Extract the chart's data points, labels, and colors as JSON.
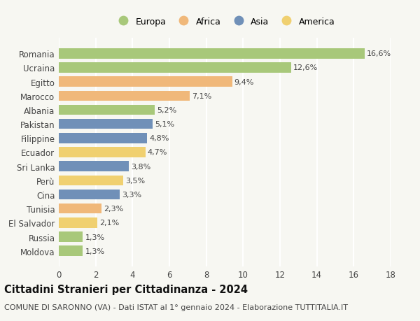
{
  "countries": [
    "Romania",
    "Ucraina",
    "Egitto",
    "Marocco",
    "Albania",
    "Pakistan",
    "Filippine",
    "Ecuador",
    "Sri Lanka",
    "Perù",
    "Cina",
    "Tunisia",
    "El Salvador",
    "Russia",
    "Moldova"
  ],
  "values": [
    16.6,
    12.6,
    9.4,
    7.1,
    5.2,
    5.1,
    4.8,
    4.7,
    3.8,
    3.5,
    3.3,
    2.3,
    2.1,
    1.3,
    1.3
  ],
  "labels": [
    "16,6%",
    "12,6%",
    "9,4%",
    "7,1%",
    "5,2%",
    "5,1%",
    "4,8%",
    "4,7%",
    "3,8%",
    "3,5%",
    "3,3%",
    "2,3%",
    "2,1%",
    "1,3%",
    "1,3%"
  ],
  "continents": [
    "Europa",
    "Europa",
    "Africa",
    "Africa",
    "Europa",
    "Asia",
    "Asia",
    "America",
    "Asia",
    "America",
    "Asia",
    "Africa",
    "America",
    "Europa",
    "Europa"
  ],
  "colors": {
    "Europa": "#a8c87a",
    "Africa": "#f0b87a",
    "Asia": "#7090b8",
    "America": "#f0d070"
  },
  "legend_order": [
    "Europa",
    "Africa",
    "Asia",
    "America"
  ],
  "title": "Cittadini Stranieri per Cittadinanza - 2024",
  "subtitle": "COMUNE DI SARONNO (VA) - Dati ISTAT al 1° gennaio 2024 - Elaborazione TUTTITALIA.IT",
  "xlim": [
    0,
    18
  ],
  "xticks": [
    0,
    2,
    4,
    6,
    8,
    10,
    12,
    14,
    16,
    18
  ],
  "background_color": "#f7f7f2",
  "grid_color": "#ffffff",
  "bar_height": 0.72,
  "title_fontsize": 10.5,
  "subtitle_fontsize": 8,
  "label_fontsize": 8,
  "ytick_fontsize": 8.5,
  "xtick_fontsize": 8.5,
  "legend_fontsize": 9
}
